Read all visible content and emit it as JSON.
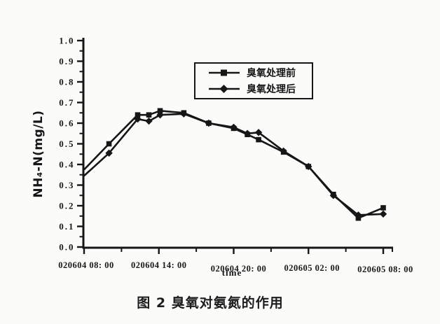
{
  "caption": "图 2  臭氧对氨氮的作用",
  "chart_data": {
    "type": "line",
    "title": "",
    "xlabel": "time",
    "ylabel": "NH₄-N(mg/L)",
    "ylim": [
      0.0,
      1.0
    ],
    "y_major_step": 0.1,
    "y_minor_step": 0.05,
    "y_tick_labels": [
      "0.0",
      "0.1",
      "0.2",
      "0.3",
      "0.4",
      "0.5",
      "0.6",
      "0.7",
      "0.8",
      "0.9",
      "1.0"
    ],
    "x_hours_range": [
      0,
      24
    ],
    "x_major_tick_hours": [
      0,
      6,
      12,
      18,
      24
    ],
    "x_minor_tick_hours": [
      3,
      9,
      15,
      21
    ],
    "x_tick_labels": [
      "020604 08: 00",
      "020604 14: 00",
      "020604 20: 00",
      "020605 02: 00",
      "020605 08: 00"
    ],
    "x_hours": [
      0,
      2,
      4.3,
      5.2,
      6.1,
      8,
      10,
      12,
      13.1,
      14,
      16,
      18,
      20,
      22,
      24
    ],
    "series": [
      {
        "name": "臭氧处理前",
        "marker": "square",
        "values": [
          0.375,
          0.5,
          0.64,
          0.64,
          0.66,
          0.65,
          0.6,
          0.575,
          0.545,
          0.52,
          0.46,
          0.39,
          0.255,
          0.14,
          0.19
        ]
      },
      {
        "name": "臭氧处理后",
        "marker": "diamond",
        "values": [
          0.345,
          0.455,
          0.62,
          0.61,
          0.64,
          0.645,
          0.6,
          0.58,
          0.55,
          0.555,
          0.465,
          0.39,
          0.25,
          0.155,
          0.16
        ]
      }
    ],
    "line_color": "#161616",
    "legend_position": "upper-center",
    "grid": false
  }
}
